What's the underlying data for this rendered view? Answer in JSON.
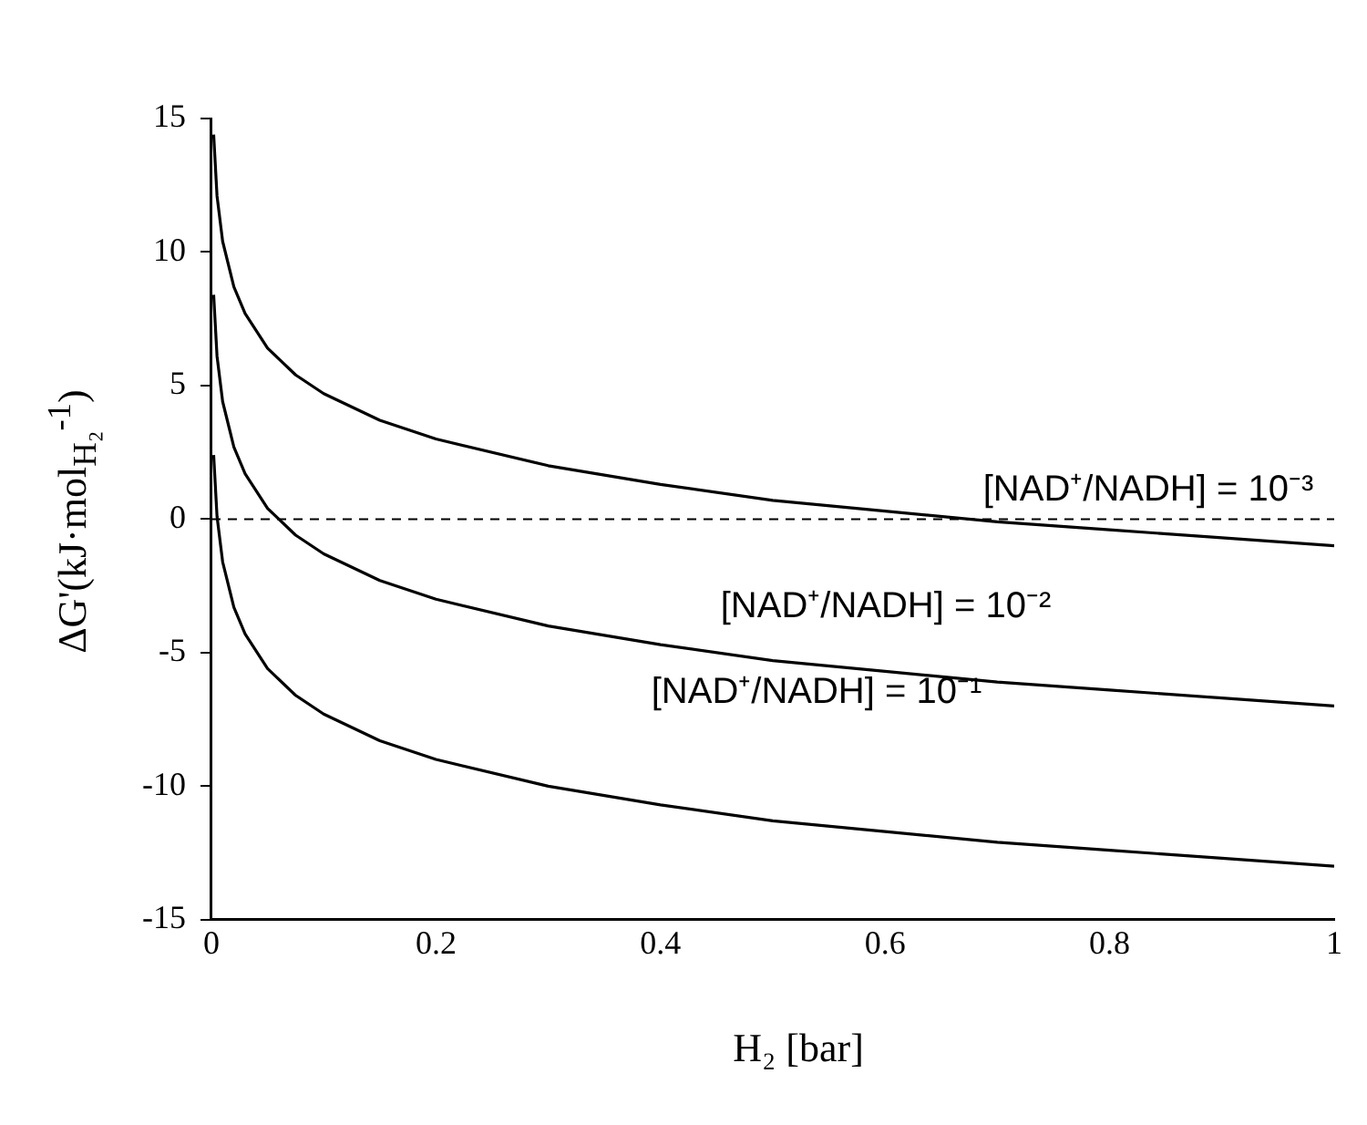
{
  "chart_data": {
    "type": "line",
    "xlabel": "H₂ [bar]",
    "ylabel": "ΔG'(kJ·mol$_{H₂}$$^{-1}$)",
    "xlim": [
      0,
      1
    ],
    "xticks": [
      0,
      0.2,
      0.4,
      0.6,
      0.8,
      1
    ],
    "ylim": [
      -15,
      15
    ],
    "yticks": [
      15,
      10,
      5,
      0,
      -5,
      -10,
      -15
    ],
    "grid": false,
    "legend": false,
    "marker": "none",
    "line_style": "solid",
    "series": [
      {
        "color": "#000000",
        "x": [
          0.002,
          0.005,
          0.01,
          0.02,
          0.03,
          0.05,
          0.075,
          0.1,
          0.15,
          0.2,
          0.3,
          0.4,
          0.5,
          0.6,
          0.7,
          0.8,
          0.9,
          1
        ],
        "values": [
          14.4,
          12.1,
          10.4,
          8.7,
          7.7,
          6.4,
          5.4,
          4.7,
          3.7,
          3.0,
          2.0,
          1.3,
          0.7,
          0.3,
          -0.1,
          -0.4,
          -0.7,
          -1.0
        ]
      },
      {
        "color": "#000000",
        "x": [
          0.002,
          0.005,
          0.01,
          0.02,
          0.03,
          0.05,
          0.075,
          0.1,
          0.15,
          0.2,
          0.3,
          0.4,
          0.5,
          0.6,
          0.7,
          0.8,
          0.9,
          1
        ],
        "values": [
          8.4,
          6.1,
          4.4,
          2.7,
          1.7,
          0.4,
          -0.6,
          -1.3,
          -2.3,
          -3.0,
          -4.0,
          -4.7,
          -5.3,
          -5.7,
          -6.1,
          -6.4,
          -6.7,
          -7.0
        ]
      },
      {
        "color": "#000000",
        "x": [
          0.002,
          0.005,
          0.01,
          0.02,
          0.03,
          0.05,
          0.075,
          0.1,
          0.15,
          0.2,
          0.3,
          0.4,
          0.5,
          0.6,
          0.7,
          0.8,
          0.9,
          1
        ],
        "values": [
          2.4,
          0.1,
          -1.6,
          -3.3,
          -4.3,
          -5.6,
          -6.6,
          -7.3,
          -8.3,
          -9.0,
          -10.0,
          -10.7,
          -11.3,
          -11.7,
          -12.1,
          -12.4,
          -12.7,
          -13.0
        ]
      }
    ],
    "ref_lines": [
      {
        "axis": "y",
        "value": 0,
        "color": "#000000",
        "line_style": "dashed"
      }
    ],
    "annotations": [
      "[NAD⁺/NADH] = 10⁻³",
      "[NAD⁺/NADH] = 10⁻²",
      "[NAD⁺/NADH] = 10⁻¹"
    ]
  }
}
